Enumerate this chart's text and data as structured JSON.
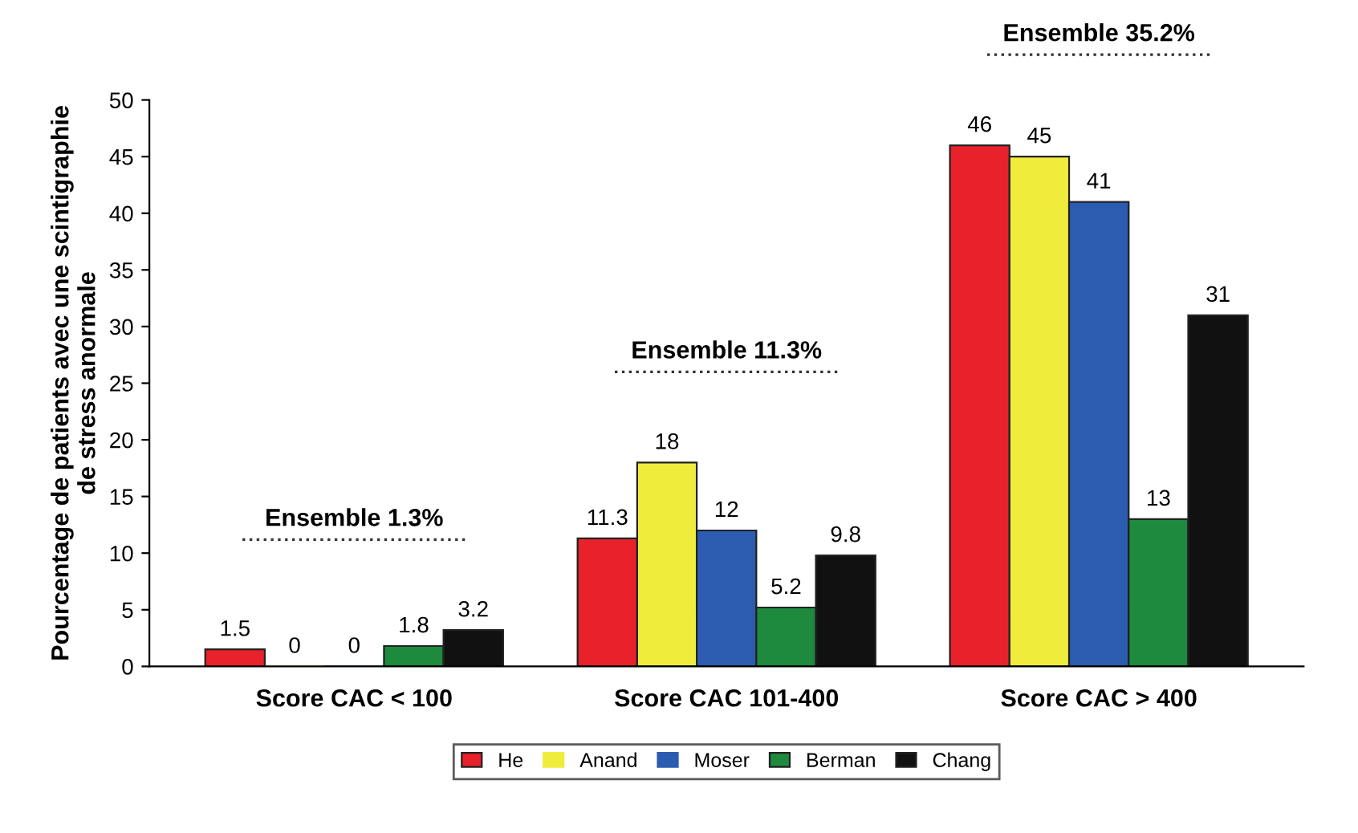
{
  "chart_data": {
    "type": "bar",
    "ylabel": "Pourcentage de patients avec une scintigraphie\nde stress anormale",
    "categories": [
      "Score CAC < 100",
      "Score CAC 101-400",
      "Score CAC > 400"
    ],
    "series": [
      {
        "name": "He",
        "color": "#e8212b",
        "values": [
          1.5,
          11.3,
          46
        ]
      },
      {
        "name": "Anand",
        "color": "#f0ec3c",
        "values": [
          0,
          18,
          45
        ]
      },
      {
        "name": "Moser",
        "color": "#2b5cb0",
        "values": [
          0,
          12,
          41
        ]
      },
      {
        "name": "Berman",
        "color": "#1e8a3e",
        "values": [
          1.8,
          5.2,
          13
        ]
      },
      {
        "name": "Chang",
        "color": "#111111",
        "values": [
          3.2,
          9.8,
          31
        ]
      }
    ],
    "ylim": [
      0,
      50
    ],
    "yticks": [
      0,
      5,
      10,
      15,
      20,
      25,
      30,
      35,
      40,
      45,
      50
    ],
    "data_labels": true,
    "grid": false,
    "legend": "bottom",
    "annotations": [
      "Ensemble 1.3%",
      "Ensemble 11.3%",
      "Ensemble 35.2%"
    ]
  }
}
